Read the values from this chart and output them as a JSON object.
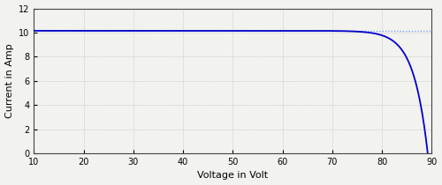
{
  "xlabel": "Voltage in Volt",
  "ylabel": "Current in Amp",
  "xlim": [
    10,
    90
  ],
  "ylim": [
    0,
    12
  ],
  "xticks": [
    10,
    20,
    30,
    40,
    50,
    60,
    70,
    80,
    90
  ],
  "yticks": [
    0,
    2,
    4,
    6,
    8,
    10,
    12
  ],
  "curve_color": "#0000cc",
  "dotted_line_color": "#6699ff",
  "dotted_line_y": 10.12,
  "Isc": 10.15,
  "Voc": 89.2,
  "Vt": 2.8,
  "background_color": "#f2f2ee",
  "grid_color": "#bbbbbb",
  "curve_linewidth": 1.3,
  "dotted_linewidth": 0.9,
  "tick_labelsize": 7,
  "label_fontsize": 8,
  "fig_width": 5.0,
  "fig_height": 2.1,
  "fig_dpi": 100
}
